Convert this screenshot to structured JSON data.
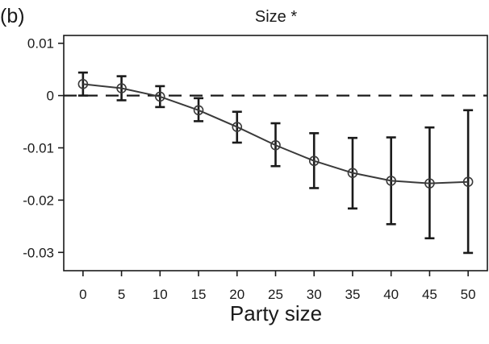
{
  "panel_label": "(b)",
  "chart_data": {
    "type": "line",
    "title": "Size *",
    "xlabel": "Party size",
    "ylabel": "",
    "xlim": [
      -2.5,
      52.5
    ],
    "ylim": [
      -0.0335,
      0.0115
    ],
    "x_ticks": [
      0,
      5,
      10,
      15,
      20,
      25,
      30,
      35,
      40,
      45,
      50
    ],
    "x_tick_labels": [
      "0",
      "5",
      "10",
      "15",
      "20",
      "25",
      "30",
      "35",
      "40",
      "45",
      "50"
    ],
    "y_ticks": [
      0.01,
      0,
      -0.01,
      -0.02,
      -0.03
    ],
    "y_tick_labels": [
      "0.01",
      "0",
      "-0.01",
      "-0.02",
      "-0.03"
    ],
    "reference_line": {
      "y": 0,
      "style": "dashed"
    },
    "grid": false,
    "legend": "none",
    "series": [
      {
        "marker": "open-circle",
        "x": [
          0,
          5,
          10,
          15,
          20,
          25,
          30,
          35,
          40,
          45,
          50
        ],
        "y": [
          0.0022,
          0.0014,
          -0.0002,
          -0.0028,
          -0.006,
          -0.0095,
          -0.0125,
          -0.0148,
          -0.0163,
          -0.0168,
          -0.0165
        ],
        "err_low": [
          0.0,
          -0.0009,
          -0.0022,
          -0.0049,
          -0.009,
          -0.0135,
          -0.0177,
          -0.0216,
          -0.0246,
          -0.0273,
          -0.0301
        ],
        "err_high": [
          0.0044,
          0.0037,
          0.0018,
          -0.0005,
          -0.0031,
          -0.0053,
          -0.0072,
          -0.0081,
          -0.008,
          -0.0061,
          -0.0028
        ]
      }
    ],
    "colors": {
      "line": "#3a3a3a",
      "errorbar": "#1a1a1a",
      "axes": "#1a1a1a"
    }
  }
}
